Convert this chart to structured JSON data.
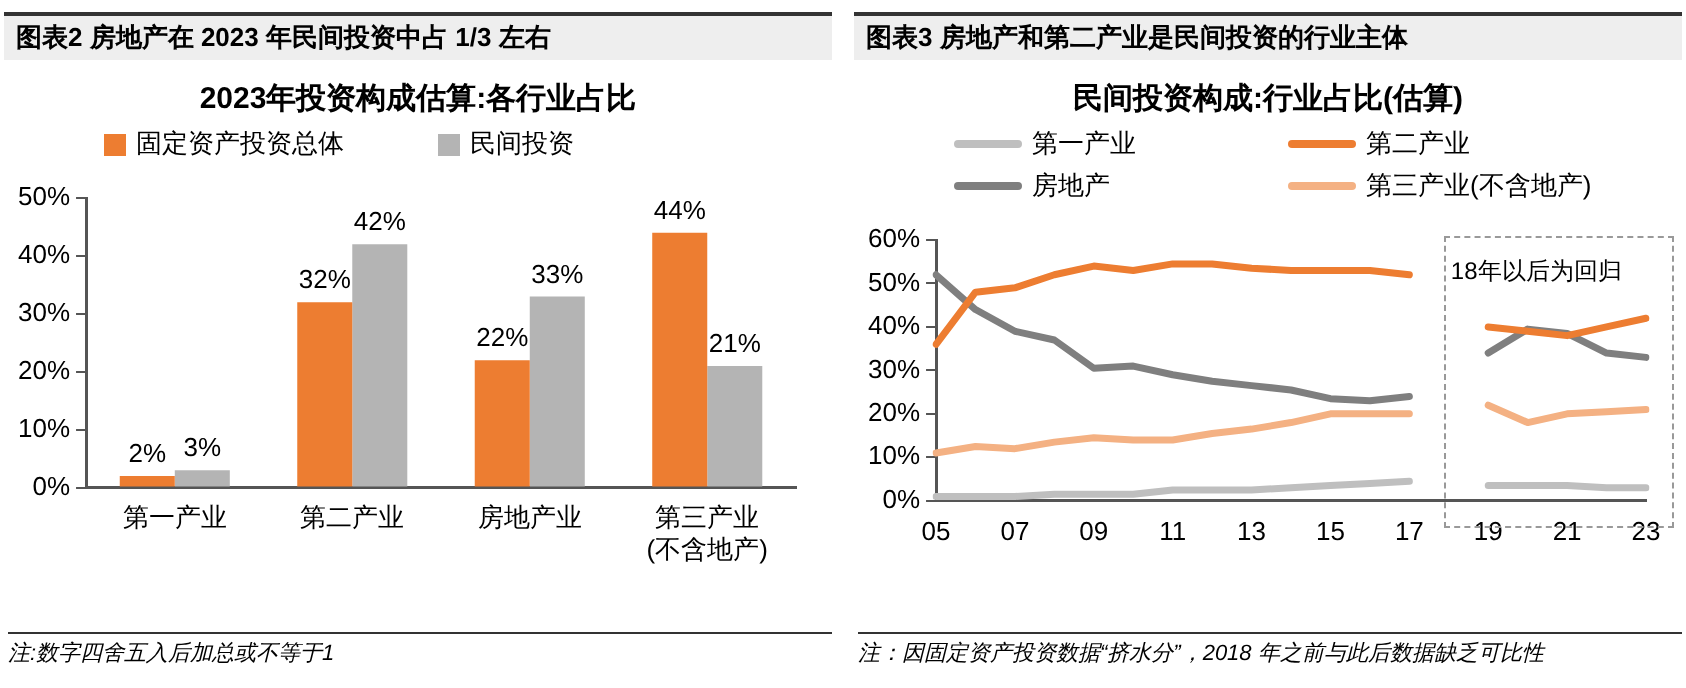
{
  "chart_data": [
    {
      "type": "bar",
      "title": "图表2  房地产在 2023 年民间投资中占 1/3 左右",
      "subtitle": "2023年投资构成估算:各行业占比",
      "categories": [
        "第一产业",
        "第二产业",
        "房地产业",
        "第三产业\n(不含地产)"
      ],
      "series": [
        {
          "name": "固定资产投资总体",
          "color": "#ed7d31",
          "values": [
            2,
            32,
            22,
            44
          ],
          "value_labels": [
            "2%",
            "32%",
            "22%",
            "44%"
          ]
        },
        {
          "name": "民间投资",
          "color": "#b4b4b4",
          "values": [
            3,
            42,
            33,
            21
          ],
          "value_labels": [
            "3%",
            "42%",
            "33%",
            "21%"
          ]
        }
      ],
      "ylim": [
        0,
        50
      ],
      "yticks": [
        {
          "value": 0,
          "label": "0%"
        },
        {
          "value": 10,
          "label": "10%"
        },
        {
          "value": 20,
          "label": "20%"
        },
        {
          "value": 30,
          "label": "30%"
        },
        {
          "value": 40,
          "label": "40%"
        },
        {
          "value": 50,
          "label": "50%"
        }
      ],
      "grid": false,
      "legend": "top",
      "annotations": [
        "注:数字四舍五入后加总或不等于1"
      ]
    },
    {
      "type": "line",
      "title": "图表3  房地产和第二产业是民间投资的行业主体",
      "subtitle": "民间投资构成:行业占比(估算)",
      "categories": [
        "05",
        null,
        "07",
        null,
        "09",
        null,
        "11",
        null,
        "13",
        null,
        "15",
        null,
        "17",
        null,
        "19",
        null,
        "21",
        null,
        "23"
      ],
      "series": [
        {
          "name": "第一产业",
          "color": "#bfbfbf",
          "values": [
            1,
            1,
            1,
            1.5,
            1.5,
            1.5,
            2.5,
            2.5,
            2.5,
            3,
            3.5,
            4,
            4.5,
            null,
            3.5,
            3.5,
            3.5,
            3,
            3
          ]
        },
        {
          "name": "第二产业",
          "color": "#ed7d31",
          "values": [
            36,
            48,
            49,
            52,
            54,
            53,
            54.5,
            54.5,
            53.5,
            53,
            53,
            53,
            52,
            null,
            40,
            39,
            38,
            40,
            42
          ]
        },
        {
          "name": "房地产",
          "color": "#7f7f7f",
          "values": [
            52,
            44,
            39,
            37,
            30.5,
            31,
            29,
            27.5,
            26.5,
            25.5,
            23.5,
            23,
            24,
            null,
            34,
            39.5,
            38.5,
            34,
            33
          ]
        },
        {
          "name": "第三产业(不含地产)",
          "color": "#f4b183",
          "values": [
            11,
            12.5,
            12,
            13.5,
            14.5,
            14,
            14,
            15.5,
            16.5,
            18,
            20,
            20,
            20,
            null,
            22,
            18,
            20,
            20.5,
            21
          ]
        }
      ],
      "ylim": [
        0,
        60
      ],
      "yticks": [
        {
          "value": 0,
          "label": "0%"
        },
        {
          "value": 10,
          "label": "10%"
        },
        {
          "value": 20,
          "label": "20%"
        },
        {
          "value": 30,
          "label": "30%"
        },
        {
          "value": 40,
          "label": "40%"
        },
        {
          "value": 50,
          "label": "50%"
        },
        {
          "value": 60,
          "label": "60%"
        }
      ],
      "grid": false,
      "legend": "top",
      "marker": "none",
      "line_style": "solid",
      "annotations": [
        "18年以后为回归",
        "注：因固定资产投资数据“挤水分”，2018 年之前与此后数据缺乏可比性"
      ]
    }
  ]
}
